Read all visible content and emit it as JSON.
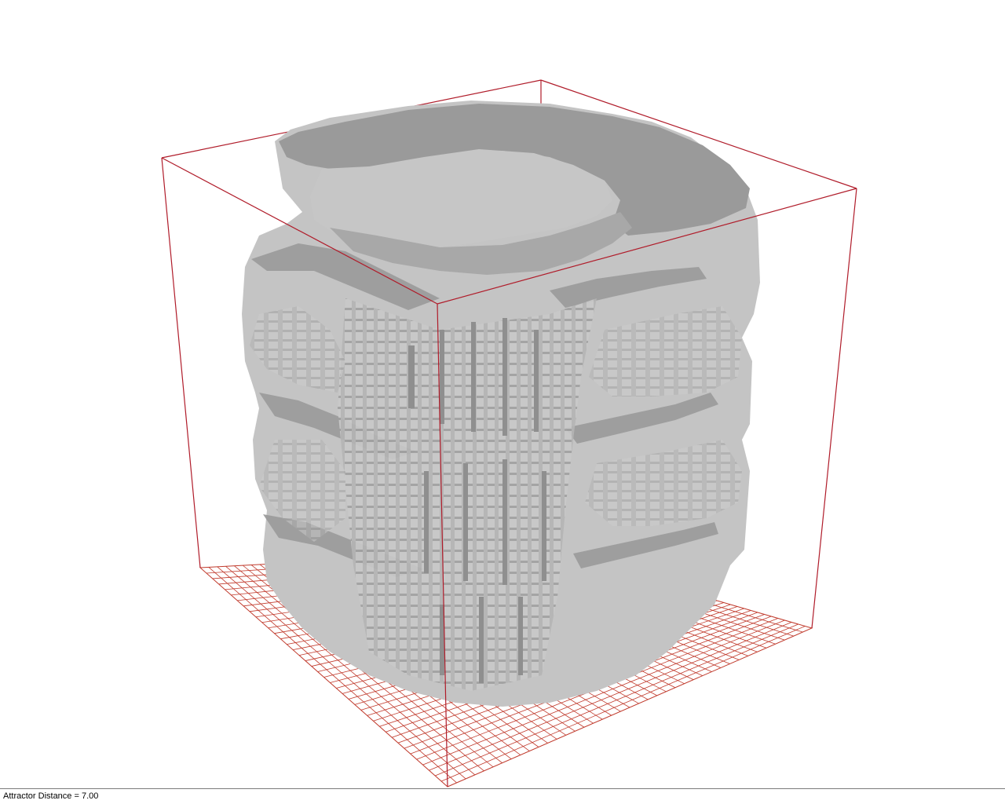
{
  "status_bar": {
    "readout": "Attractor Distance = 7.00"
  },
  "scene": {
    "bounding_box_color": "#b01c2a",
    "ground_grid_color": "#c0392b",
    "voxel_top_color": "#9c9c9c",
    "voxel_front_color": "#c8c8c8",
    "voxel_side_color": "#a8a8a8",
    "background_color": "#ffffff"
  }
}
